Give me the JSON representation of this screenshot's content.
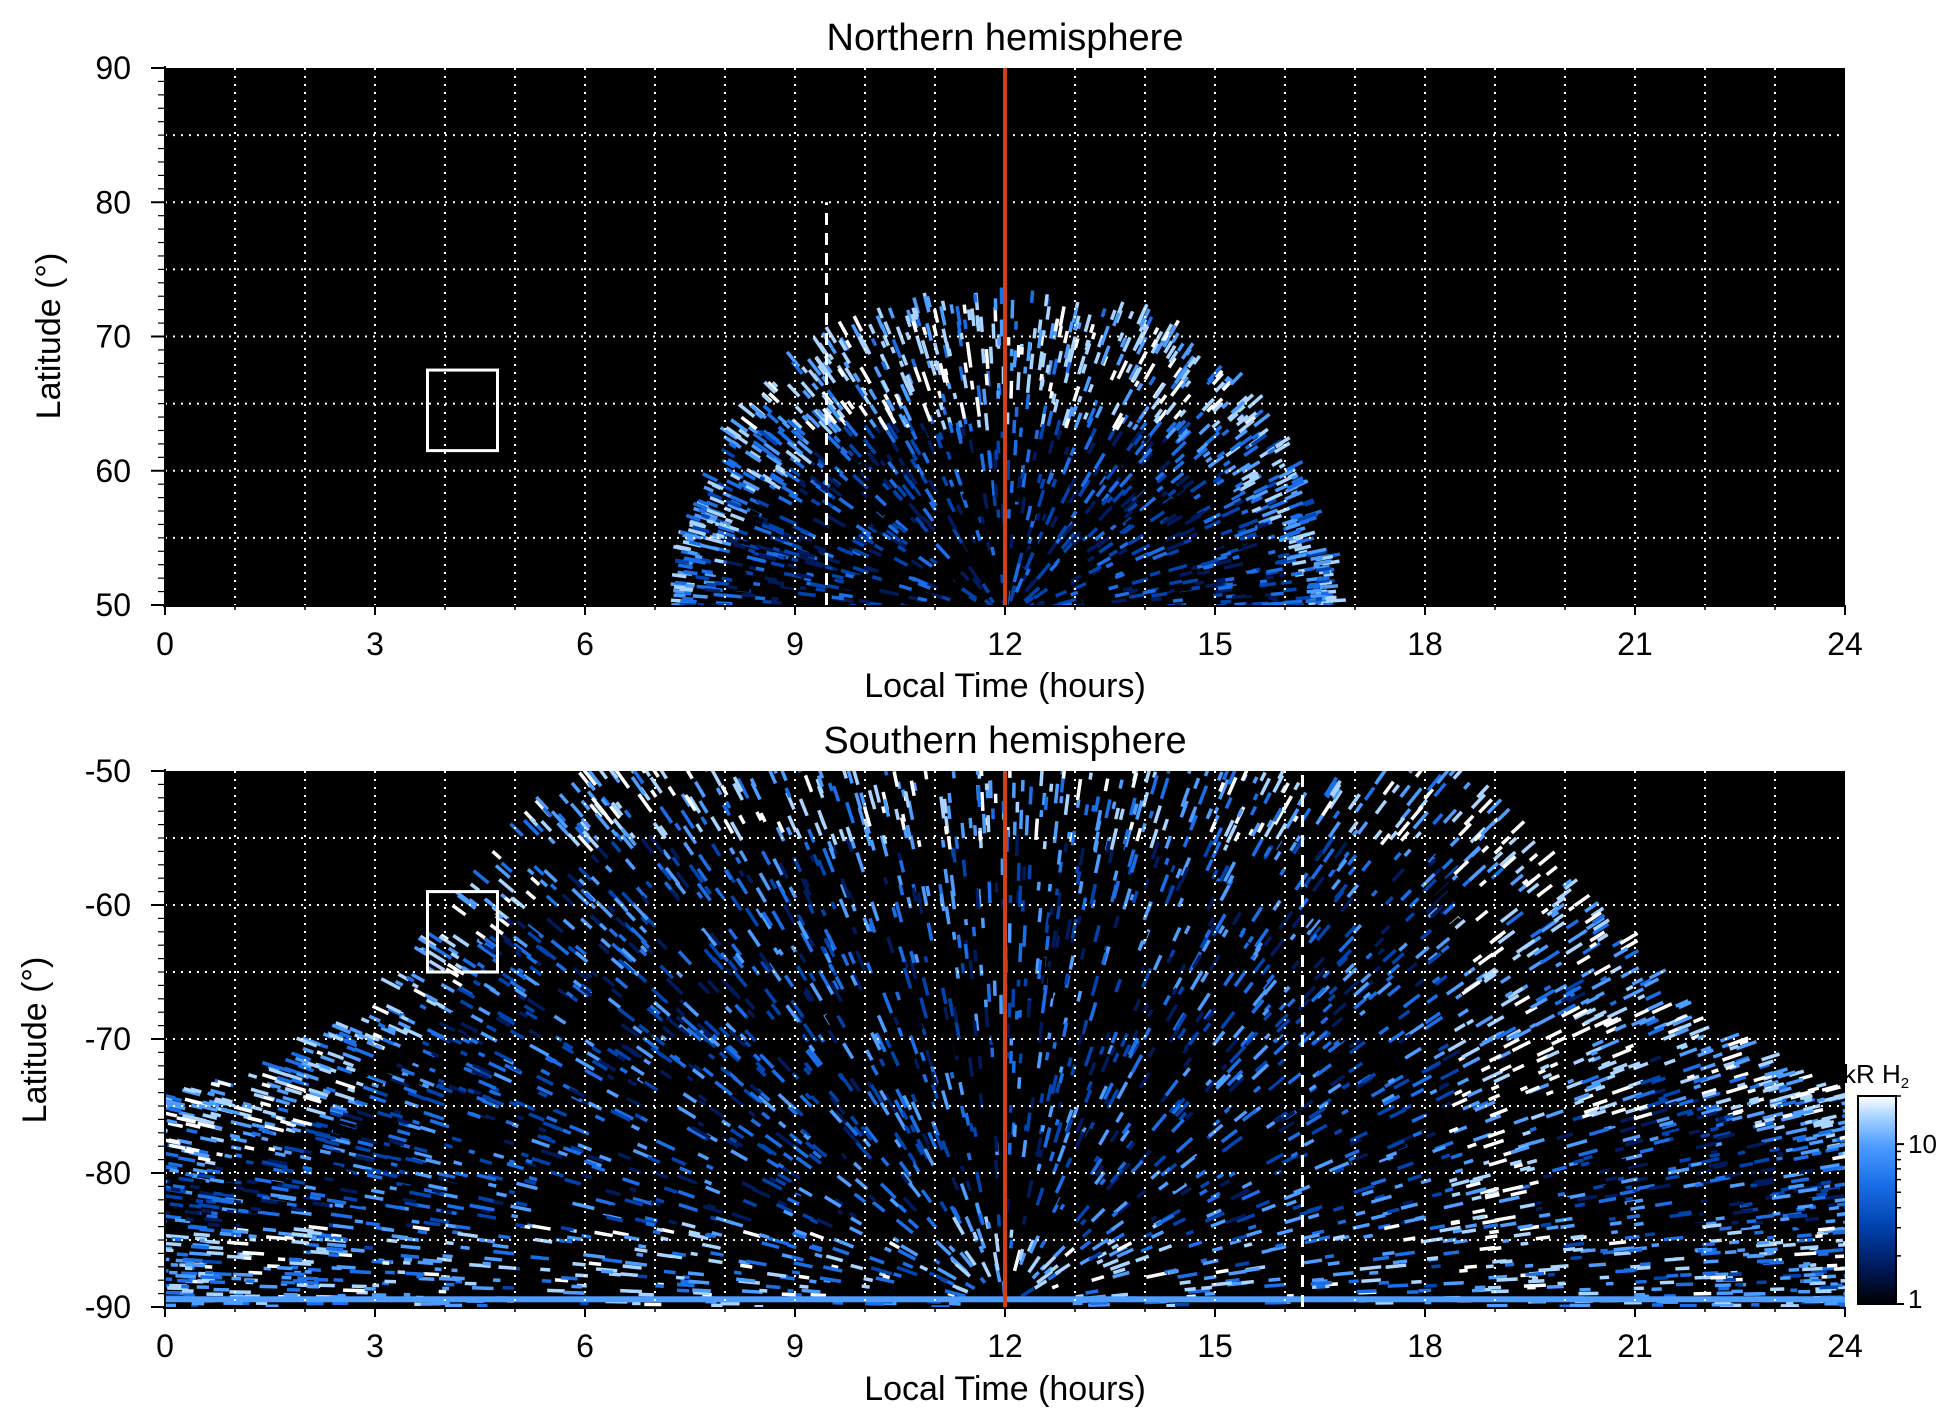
{
  "chart_data": [
    {
      "type": "heatmap",
      "title": "Northern hemisphere",
      "xlabel": "Local Time (hours)",
      "ylabel": "Latitude (°)",
      "xlim": [
        0,
        24
      ],
      "ylim": [
        50,
        90
      ],
      "xticks": [
        0,
        3,
        6,
        9,
        12,
        15,
        18,
        21,
        24
      ],
      "xtick_labels": [
        "0",
        "3",
        "6",
        "9",
        "12",
        "15",
        "18",
        "21",
        "24"
      ],
      "yticks": [
        50,
        60,
        70,
        80,
        90
      ],
      "ytick_labels": [
        "50",
        "60",
        "70",
        "80",
        "90"
      ],
      "grid": true,
      "grid_x": [
        1,
        2,
        3,
        4,
        5,
        6,
        7,
        8,
        9,
        10,
        11,
        13,
        14,
        15,
        16,
        17,
        18,
        19,
        20,
        21,
        22,
        23
      ],
      "grid_y": [
        55,
        60,
        65,
        70,
        75,
        80,
        85
      ],
      "background": "#000000",
      "emission_region": {
        "lt_center": 12.0,
        "lt_half_width": 4.6,
        "lat_edge_min": 49,
        "lat_edge_max": 73.5,
        "bright_band_lat": [
          63,
          72
        ]
      },
      "noon_line": {
        "x": 12,
        "color": "#d04018"
      },
      "dashed_line": {
        "x": 9.45,
        "y_range": [
          50,
          80
        ],
        "color": "#ffffff"
      },
      "box": {
        "x_range": [
          3.75,
          4.75
        ],
        "y_range": [
          61.5,
          67.5
        ],
        "color": "#ffffff"
      }
    },
    {
      "type": "heatmap",
      "title": "Southern hemisphere",
      "xlabel": "Local Time (hours)",
      "ylabel": "Latitude (°)",
      "xlim": [
        0,
        24
      ],
      "ylim": [
        -90,
        -50
      ],
      "xticks": [
        0,
        3,
        6,
        9,
        12,
        15,
        18,
        21,
        24
      ],
      "xtick_labels": [
        "0",
        "3",
        "6",
        "9",
        "12",
        "15",
        "18",
        "21",
        "24"
      ],
      "yticks": [
        -90,
        -80,
        -70,
        -60,
        -50
      ],
      "ytick_labels": [
        "-90",
        "-80",
        "-70",
        "-60",
        "-50"
      ],
      "grid": true,
      "grid_x": [
        1,
        2,
        3,
        4,
        5,
        6,
        7,
        8,
        9,
        10,
        11,
        13,
        14,
        15,
        16,
        17,
        18,
        19,
        20,
        21,
        22,
        23
      ],
      "grid_y": [
        -85,
        -80,
        -75,
        -70,
        -65,
        -60,
        -55
      ],
      "background": "#000000",
      "emission_region": {
        "boundary_lt": [
          0,
          1.5,
          3.0,
          4.0,
          5.0,
          6.0,
          12.0,
          18.5,
          20.0,
          21.5,
          23.0,
          24.0
        ],
        "boundary_lat": [
          -74.5,
          -72.5,
          -68.0,
          -62.0,
          -55.0,
          -50.0,
          -50.0,
          -50.0,
          -58.0,
          -67.0,
          -72.0,
          -74.5
        ]
      },
      "noon_line": {
        "x": 12,
        "color": "#d04018"
      },
      "dashed_line": {
        "x": 16.25,
        "y_range": [
          -90,
          -50
        ],
        "color": "#ffffff"
      },
      "box": {
        "x_range": [
          3.75,
          4.75
        ],
        "y_range": [
          -65,
          -59
        ],
        "color": "#ffffff"
      }
    }
  ],
  "colorbar": {
    "label_main": "kR H",
    "label_sub": "2",
    "ticks": [
      1,
      10
    ],
    "tick_labels": [
      "1",
      "10"
    ],
    "range": [
      1,
      20
    ],
    "scale": "log",
    "colors": [
      "#000000",
      "#001a5c",
      "#0044b0",
      "#1a6fe8",
      "#4d9cff",
      "#a8d4ff",
      "#ffffff"
    ]
  }
}
